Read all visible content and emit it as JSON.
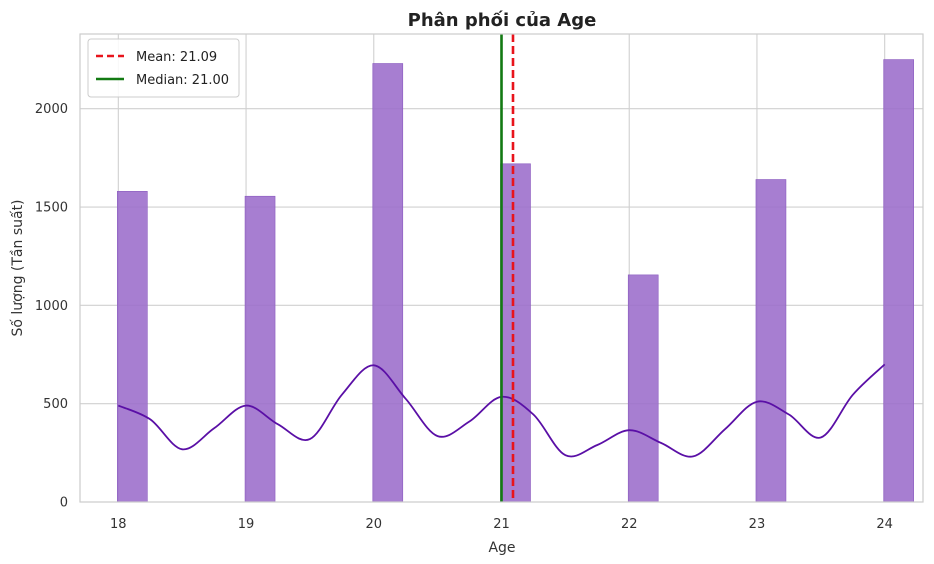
{
  "chart_data": {
    "type": "bar",
    "title": "Phân phối của Age",
    "xlabel": "Age",
    "ylabel": "Số lượng (Tần suất)",
    "x": [
      18,
      19,
      20,
      21,
      22,
      23,
      24
    ],
    "values": [
      1580,
      1555,
      2230,
      1720,
      1155,
      1640,
      2250
    ],
    "xticks": [
      "18",
      "19",
      "20",
      "21",
      "22",
      "23",
      "24"
    ],
    "yticks": [
      "0",
      "500",
      "1000",
      "1500",
      "2000"
    ],
    "xlim": [
      17.7,
      24.3
    ],
    "ylim": [
      0,
      2380
    ],
    "grid": true,
    "bar_color": "#9b6ccb",
    "kde": {
      "color": "#5a0fa6",
      "x": [
        18.0,
        18.25,
        18.5,
        18.75,
        19.0,
        19.25,
        19.5,
        19.75,
        20.0,
        20.25,
        20.5,
        20.75,
        21.0,
        21.25,
        21.5,
        21.75,
        22.0,
        22.25,
        22.5,
        22.75,
        23.0,
        23.25,
        23.5,
        23.75,
        24.0
      ],
      "y": [
        490,
        420,
        268,
        375,
        490,
        395,
        320,
        545,
        695,
        525,
        335,
        410,
        535,
        445,
        238,
        290,
        365,
        300,
        232,
        370,
        510,
        445,
        328,
        545,
        700
      ]
    },
    "lines": [
      {
        "label": "Mean: 21.09",
        "x": 21.09,
        "color": "#e8141c",
        "style": "dashed"
      },
      {
        "label": "Median: 21.00",
        "x": 21.0,
        "color": "#137a13",
        "style": "solid"
      }
    ],
    "legend_position": "top-left"
  }
}
